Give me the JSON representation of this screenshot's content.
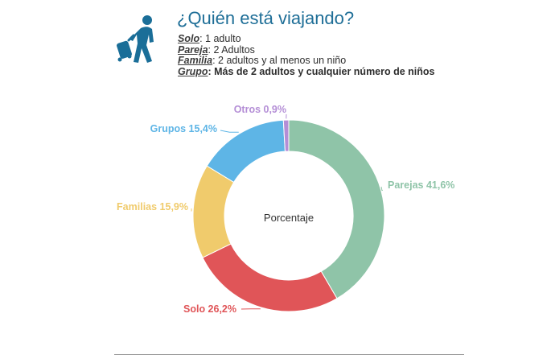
{
  "header": {
    "title": "¿Quién está viajando?",
    "icon": "traveler-with-luggage-icon",
    "icon_color": "#1a6e98",
    "definitions": [
      {
        "term": "Solo",
        "desc": ": 1 adulto"
      },
      {
        "term": "Pareja",
        "desc": ": 2 Adultos"
      },
      {
        "term": "Familia",
        "desc": ": 2 adultos y al menos un niño"
      },
      {
        "term": "Grupo",
        "desc": ": Más de 2 adultos y cualquier número de niños"
      }
    ]
  },
  "chart_data": {
    "type": "pie",
    "variant": "donut",
    "center_label": "Porcentaje",
    "slices": [
      {
        "label": "Parejas",
        "value": 41.6,
        "value_text": "41,6%",
        "color": "#8fc4a8"
      },
      {
        "label": "Solo",
        "value": 26.2,
        "value_text": "26,2%",
        "color": "#e05558"
      },
      {
        "label": "Familias",
        "value": 15.9,
        "value_text": "15,9%",
        "color": "#f0cb6c"
      },
      {
        "label": "Grupos",
        "value": 15.4,
        "value_text": "15,4%",
        "color": "#5eb5e6"
      },
      {
        "label": "Otros",
        "value": 0.9,
        "value_text": "0,9%",
        "color": "#b48ed6"
      }
    ]
  }
}
